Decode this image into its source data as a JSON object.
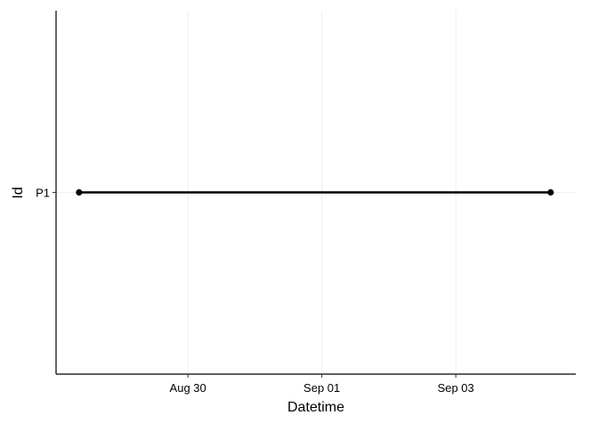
{
  "chart_data": {
    "type": "line",
    "title": "",
    "xlabel": "Datetime",
    "ylabel": "Id",
    "x_tick_labels": [
      {
        "label": "Aug 30",
        "value": "08-30 00:00"
      },
      {
        "label": "Sep 01",
        "value": "09-01 00:00"
      },
      {
        "label": "Sep 03",
        "value": "09-03 00:00"
      }
    ],
    "y_categories": [
      "P1"
    ],
    "xlim": [
      "08-28 00:45",
      "09-04 19:00"
    ],
    "series": [
      {
        "category": "P1",
        "x": [
          "08-28 09:00",
          "09-04 10:00"
        ],
        "color": "#000000"
      }
    ],
    "grid": "major lines, very light gray",
    "legend": "none"
  }
}
